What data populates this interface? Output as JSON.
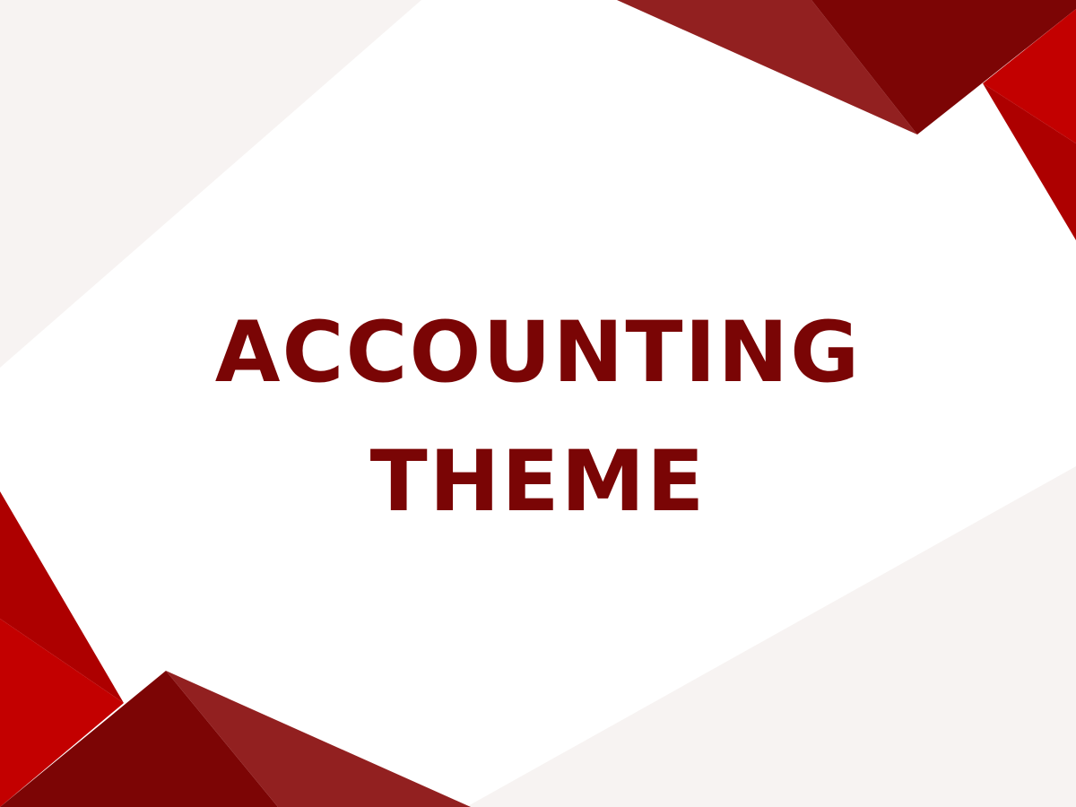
{
  "slide": {
    "title_line_1": "ACCOUNTING",
    "title_line_2": "THEME"
  },
  "colors": {
    "title_text": "#7a0505",
    "background": "#ffffff",
    "light_panel": "#f7f3f2",
    "maroon_dark": "#7c0505",
    "maroon_mid": "#922020",
    "red_bright": "#c30000",
    "red_deep": "#ad0000"
  }
}
